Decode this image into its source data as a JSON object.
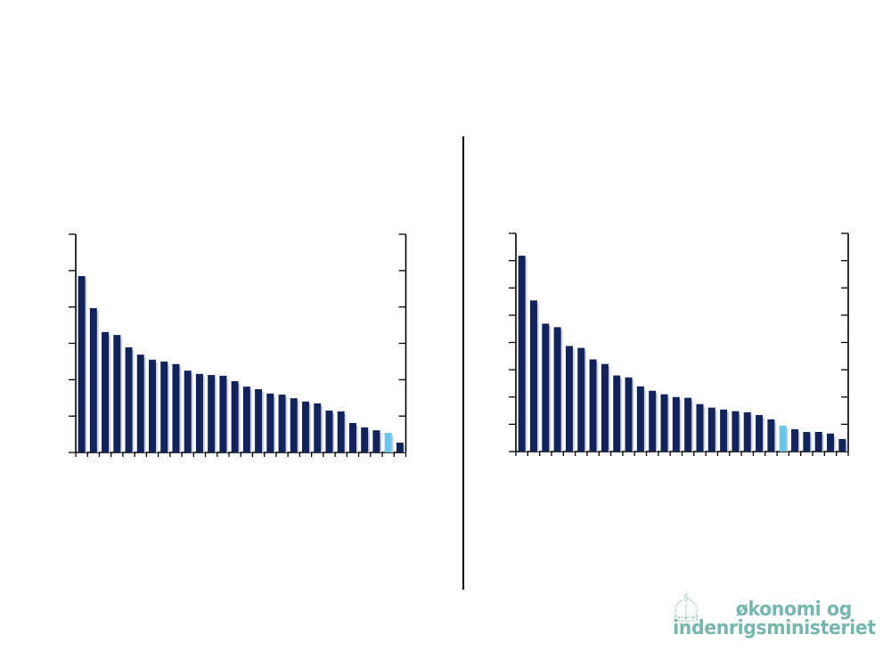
{
  "slide": {
    "background": "#ffffff",
    "divider_color": "#000000"
  },
  "logo": {
    "line1": "økonomi og",
    "line2": "indenrigsministeriet",
    "color": "#77b7ae",
    "icon": "crown-icon"
  },
  "chart_data": [
    {
      "type": "bar",
      "position": "left",
      "title": "",
      "xlabel": "",
      "ylabel": "",
      "categories": [],
      "bar_count": 28,
      "values": [
        4.85,
        3.97,
        3.31,
        3.23,
        2.89,
        2.69,
        2.55,
        2.5,
        2.43,
        2.25,
        2.16,
        2.13,
        2.11,
        1.96,
        1.81,
        1.74,
        1.62,
        1.59,
        1.49,
        1.4,
        1.35,
        1.15,
        1.13,
        0.81,
        0.69,
        0.61,
        0.54,
        0.27
      ],
      "highlight_index": 26,
      "bar_color": "#12235c",
      "highlight_color": "#69c6e7",
      "shadow_color": "#c7cee0",
      "axis_color": "#000000",
      "ylim": [
        0,
        6
      ],
      "y_tick_count": 7,
      "x_boundary_ticks": 29,
      "grid": false,
      "legend": false,
      "tick_labels_visible": false,
      "axes_style": "y-axis on both left and right with unlabeled tick marks, x-axis with unlabeled category boundary ticks"
    },
    {
      "type": "bar",
      "position": "right",
      "title": "",
      "xlabel": "",
      "ylabel": "",
      "categories": [],
      "bar_count": 28,
      "values": [
        7.18,
        5.54,
        4.69,
        4.56,
        3.87,
        3.8,
        3.38,
        3.21,
        2.79,
        2.72,
        2.39,
        2.23,
        2.1,
        2.0,
        1.97,
        1.74,
        1.61,
        1.54,
        1.48,
        1.44,
        1.34,
        1.18,
        0.95,
        0.82,
        0.72,
        0.72,
        0.66,
        0.46
      ],
      "highlight_index": 22,
      "bar_color": "#12235c",
      "highlight_color": "#69c6e7",
      "shadow_color": "#c7cee0",
      "axis_color": "#000000",
      "ylim": [
        0,
        8
      ],
      "y_tick_count": 9,
      "x_boundary_ticks": 29,
      "grid": false,
      "legend": false,
      "tick_labels_visible": false,
      "axes_style": "y-axis on both left and right with unlabeled tick marks, x-axis with unlabeled category boundary ticks"
    }
  ]
}
